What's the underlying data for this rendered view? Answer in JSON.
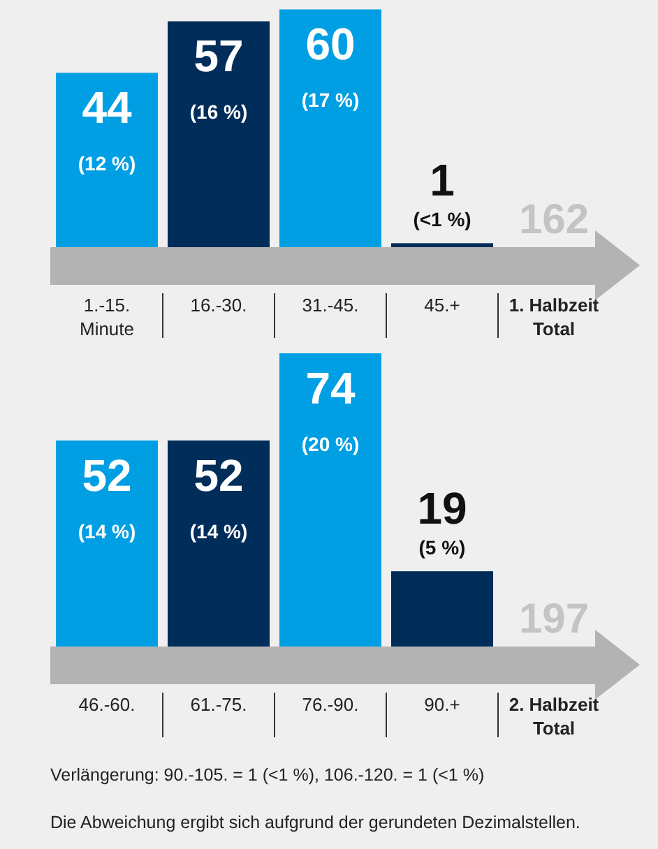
{
  "chart_data": [
    {
      "type": "bar",
      "categories": [
        "1.-15.\nMinute",
        "16.-30.",
        "31.-45.",
        "45.+",
        "1. Halbzeit\nTotal"
      ],
      "colors": [
        "#009fe3",
        "#002d5a",
        "#009fe3",
        "#002d5a",
        null
      ],
      "values": [
        44,
        57,
        60,
        1,
        null
      ],
      "value_labels": [
        "44\n(12 %)",
        "57\n(16 %)",
        "60\n(17 %)",
        "1\n(<1 %)",
        null
      ],
      "annotations": [
        "162"
      ]
    },
    {
      "type": "bar",
      "categories": [
        "46.-60.",
        "61.-75.",
        "76.-90.",
        "90.+",
        "2. Halbzeit\nTotal"
      ],
      "colors": [
        "#009fe3",
        "#002d5a",
        "#009fe3",
        "#002d5a",
        null
      ],
      "values": [
        52,
        52,
        74,
        19,
        null
      ],
      "value_labels": [
        "52\n(14 %)",
        "52\n(14 %)",
        "74\n(20 %)",
        "19\n(5 %)",
        null
      ],
      "annotations": [
        "197",
        "Verlängerung: 90.-105. = 1 (<1 %), 106.-120. = 1 (<1 %)",
        "Die Abweichung ergibt sich aufgrund der gerundeten Dezimalstellen."
      ]
    }
  ]
}
